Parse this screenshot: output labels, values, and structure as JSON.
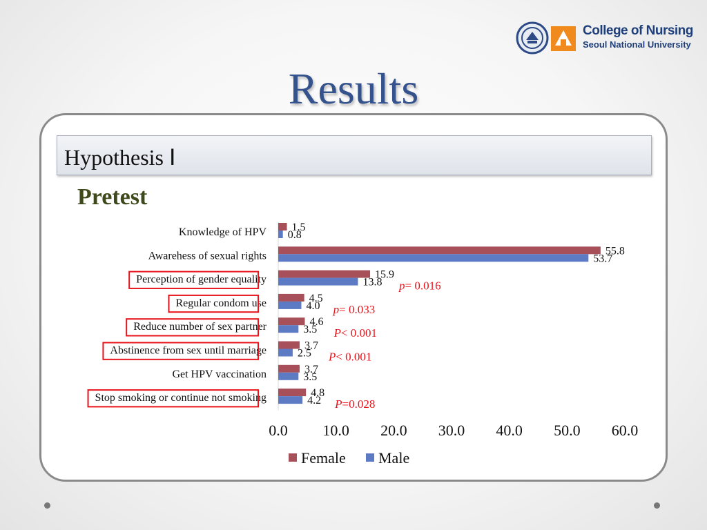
{
  "logo": {
    "line1": "College of Nursing",
    "line2": "Seoul National University"
  },
  "slide": {
    "title": "Results",
    "section": "Hypothesis Ⅰ",
    "subtitle": "Pretest"
  },
  "chart_data": {
    "type": "bar",
    "orientation": "horizontal",
    "categories": [
      "Knowledge of HPV",
      "Awarehess of sexual rights",
      "Perception of gender equality",
      "Regular condom use",
      "Reduce number of sex partner",
      "Abstinence from sex until marriage",
      "Get HPV vaccination",
      "Stop smoking or continue not smoking"
    ],
    "series": [
      {
        "name": "Female",
        "color": "#a8505a",
        "values": [
          1.5,
          55.8,
          15.9,
          4.5,
          4.6,
          3.7,
          3.7,
          4.8
        ],
        "labels": [
          "1.5",
          "55.8",
          "15.9",
          "4.5",
          "4.6",
          "3.7",
          "3.7",
          "4.8"
        ]
      },
      {
        "name": "Male",
        "color": "#5c7bc4",
        "values": [
          0.8,
          53.7,
          13.8,
          4.0,
          3.5,
          2.5,
          3.5,
          4.2
        ],
        "labels": [
          "0.8",
          "53.7",
          "13.8",
          "4.0",
          "3.5",
          "2.5",
          "3.5",
          "4.2"
        ]
      }
    ],
    "xlim": [
      0,
      60
    ],
    "xticks": [
      "0.0",
      "10.0",
      "20.0",
      "30.0",
      "40.0",
      "50.0",
      "60.0"
    ],
    "annotations": [
      {
        "category": 2,
        "prefix": "p",
        "text": "= 0.016"
      },
      {
        "category": 3,
        "prefix": "p",
        "text": "= 0.033"
      },
      {
        "category": 4,
        "prefix": "P",
        "text": "< 0.001"
      },
      {
        "category": 5,
        "prefix": "P",
        "text": "< 0.001"
      },
      {
        "category": 7,
        "prefix": "P",
        "text": "=0.028"
      }
    ],
    "highlighted_categories": [
      2,
      3,
      4,
      5,
      7
    ],
    "highlight_color": "#e8121b",
    "annotation_color": "#e8121b",
    "legend_position": "bottom",
    "grid": false
  }
}
